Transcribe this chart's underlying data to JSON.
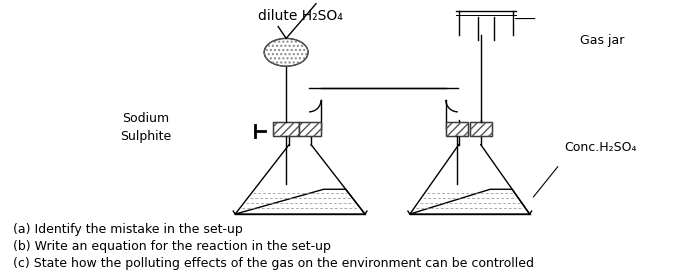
{
  "bg_color": "#ffffff",
  "title_text": "dilute H₂SO₄",
  "title_fontsize": 10,
  "label_sodium": "Sodium\nSulphite",
  "label_gasjar": "Gas jar",
  "label_conc": "Conc.H₂SO₄",
  "questions": [
    "(a) Identify the mistake in the set-up",
    "(b) Write an equation for the reaction in the set-up",
    "(c) State how the polluting effects of the gas on the environment can be controlled"
  ],
  "q_fontsize": 9,
  "line_color": "#000000"
}
